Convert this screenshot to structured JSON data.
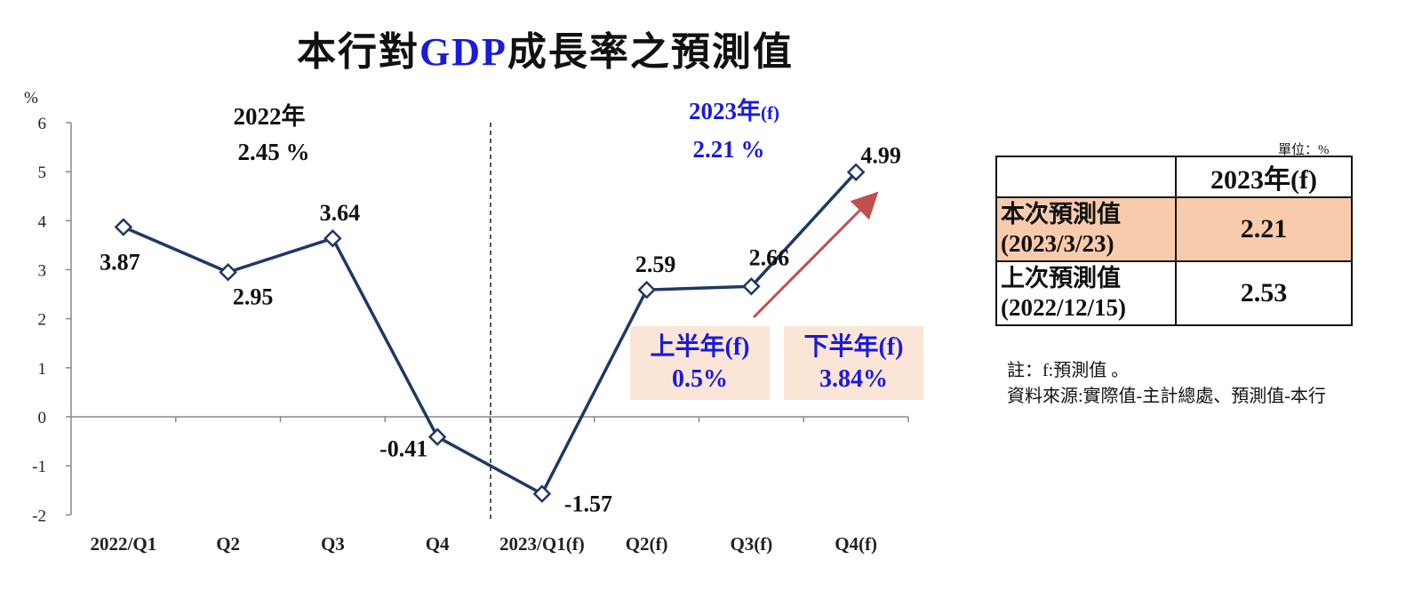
{
  "title": {
    "prefix": "本行對",
    "highlight": "GDP",
    "suffix": "成長率之預測值"
  },
  "chart_data": {
    "type": "line",
    "y_unit": "%",
    "ylim": [
      -2,
      6
    ],
    "yticks": [
      -2,
      -1,
      0,
      1,
      2,
      3,
      4,
      5,
      6
    ],
    "categories": [
      "2022/Q1",
      "Q2",
      "Q3",
      "Q4",
      "2023/Q1(f)",
      "Q2(f)",
      "Q3(f)",
      "Q4(f)"
    ],
    "values": [
      3.87,
      2.95,
      3.64,
      -0.41,
      -1.57,
      2.59,
      2.66,
      4.99
    ],
    "value_labels": [
      "3.87",
      "2.95",
      "3.64",
      "-0.41",
      "-1.57",
      "2.59",
      "2.66",
      "4.99"
    ],
    "line_color": "#1f3864",
    "arrow_color": "#c0504d",
    "annual": [
      {
        "year": "2022年",
        "value": "2.45 %",
        "color": "#111111"
      },
      {
        "year": "2023年",
        "suffix": "(f)",
        "value": "2.21 %",
        "color": "#1a1adc"
      }
    ],
    "halves": [
      {
        "label": "上半年(f)",
        "value": "0.5%"
      },
      {
        "label": "下半年(f)",
        "value": "3.84%"
      }
    ]
  },
  "table": {
    "unit": "單位：%",
    "header": "2023年(f)",
    "rows": [
      {
        "label1": "本次預測值",
        "label2": "(2023/3/23)",
        "value": "2.21"
      },
      {
        "label1": "上次預測值",
        "label2": "(2022/12/15)",
        "value": "2.53"
      }
    ]
  },
  "notes": {
    "note": "註：f:預測值 。",
    "source": "資料來源:實際值-主計總處、預測值-本行"
  }
}
